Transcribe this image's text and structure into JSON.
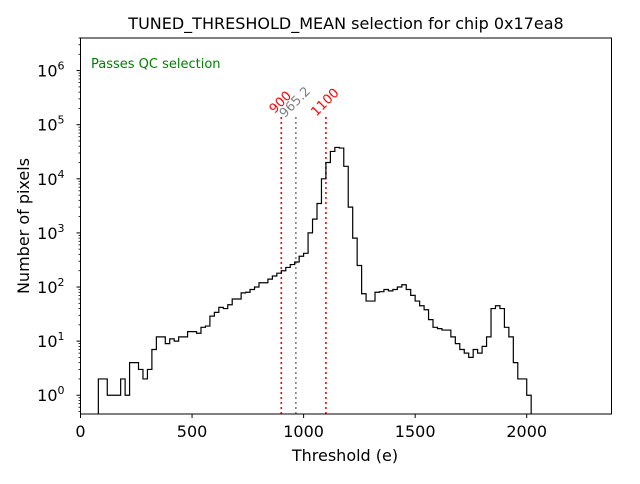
{
  "chart_data": {
    "type": "histogram",
    "title": "TUNED_THRESHOLD_MEAN selection for chip 0x17ea8",
    "xlabel": "Threshold (e)",
    "ylabel": "Number of pixels",
    "xlim": [
      0,
      2380
    ],
    "ylim": [
      0.45,
      4000000
    ],
    "yscale": "log",
    "x_ticks": [
      0,
      500,
      1000,
      1500,
      2000
    ],
    "y_ticks": [
      {
        "value": 1,
        "label": "10",
        "exp": "0"
      },
      {
        "value": 10,
        "label": "10",
        "exp": "1"
      },
      {
        "value": 100,
        "label": "10",
        "exp": "2"
      },
      {
        "value": 1000,
        "label": "10",
        "exp": "3"
      },
      {
        "value": 10000,
        "label": "10",
        "exp": "4"
      },
      {
        "value": 100000,
        "label": "10",
        "exp": "5"
      },
      {
        "value": 1000000,
        "label": "10",
        "exp": "6"
      }
    ],
    "status_text": "Passes QC selection",
    "status_color": "#008000",
    "line_color": "#000000",
    "vlines": [
      {
        "x": 900,
        "label": "900",
        "color": "#ff0000"
      },
      {
        "x": 965.2,
        "label": "965.2",
        "color": "#808080"
      },
      {
        "x": 1100,
        "label": "1100",
        "color": "#ff0000"
      }
    ],
    "bin_width": 20,
    "bin_start": 80,
    "counts": [
      2,
      2,
      1,
      1,
      1,
      2,
      1,
      4,
      4,
      3,
      2,
      3,
      7,
      12,
      12,
      9,
      11,
      10,
      12,
      12,
      15,
      15,
      14,
      18,
      19,
      29,
      34,
      42,
      40,
      47,
      60,
      60,
      78,
      80,
      90,
      100,
      120,
      120,
      140,
      160,
      180,
      200,
      230,
      260,
      290,
      370,
      420,
      1000,
      1800,
      3500,
      10000,
      20000,
      32000,
      38000,
      37000,
      17000,
      3000,
      800,
      250,
      75,
      55,
      55,
      80,
      82,
      90,
      85,
      90,
      100,
      110,
      90,
      70,
      55,
      45,
      38,
      25,
      18,
      17,
      16,
      16,
      12,
      9,
      7,
      6,
      5,
      7,
      6,
      8,
      12,
      40,
      45,
      40,
      18,
      12,
      4,
      2,
      2,
      1,
      0,
      0,
      0,
      0,
      0,
      0,
      0,
      0,
      0,
      0,
      0,
      0,
      0,
      0,
      0,
      0,
      0,
      0,
      0,
      0,
      0,
      0,
      0,
      0,
      0,
      0,
      0,
      0,
      0,
      0,
      0,
      0,
      0,
      0,
      0,
      0,
      0,
      0,
      0,
      0,
      0,
      0,
      0,
      0,
      0,
      0,
      0,
      0
    ]
  }
}
